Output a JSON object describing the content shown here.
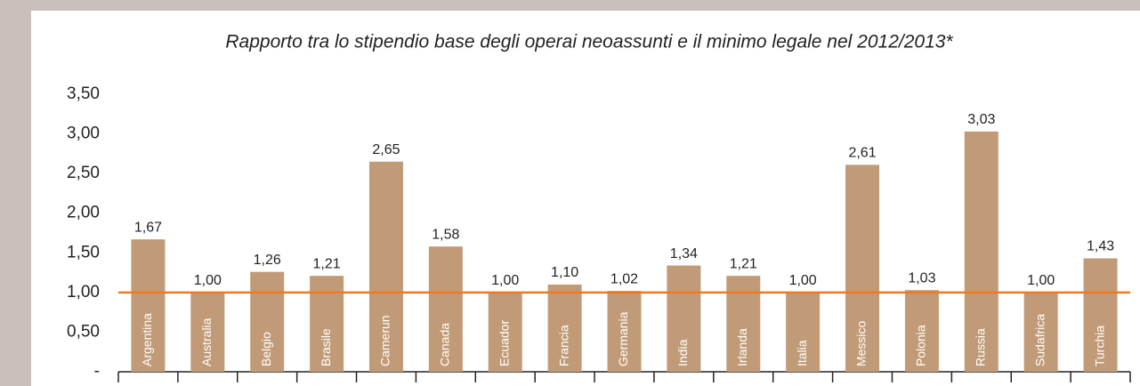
{
  "chart_data": {
    "type": "bar",
    "title": "Rapporto tra lo stipendio base degli operai neoassunti e il minimo legale nel 2012/2013*",
    "categories": [
      "Argentina",
      "Australia",
      "Belgio",
      "Brasile",
      "Camerun",
      "Canada",
      "Ecuador",
      "Francia",
      "Germania",
      "India",
      "Irlanda",
      "Italia",
      "Messico",
      "Polonia",
      "Russia",
      "Sudafrica",
      "Turchia"
    ],
    "values": [
      1.67,
      1.0,
      1.26,
      1.21,
      2.65,
      1.58,
      1.0,
      1.1,
      1.02,
      1.34,
      1.21,
      1.0,
      2.61,
      1.03,
      3.03,
      1.0,
      1.43
    ],
    "value_labels": [
      "1,67",
      "1,00",
      "1,26",
      "1,21",
      "2,65",
      "1,58",
      "1,00",
      "1,10",
      "1,02",
      "1,34",
      "1,21",
      "1,00",
      "2,61",
      "1,03",
      "3,03",
      "1,00",
      "1,43"
    ],
    "color": "#c19b77",
    "reference_line": {
      "value": 1,
      "color": "#ee7a22"
    },
    "ylim": [
      0,
      3.5
    ],
    "yticks": [
      {
        "value": 0,
        "label": "-"
      },
      {
        "value": 0.5,
        "label": "0,50"
      },
      {
        "value": 1,
        "label": "1,00"
      },
      {
        "value": 1.5,
        "label": "1,50"
      },
      {
        "value": 2,
        "label": "2,00"
      },
      {
        "value": 2.5,
        "label": "2,50"
      },
      {
        "value": 3,
        "label": "3,00"
      },
      {
        "value": 3.5,
        "label": "3,50"
      }
    ],
    "grid": false
  }
}
